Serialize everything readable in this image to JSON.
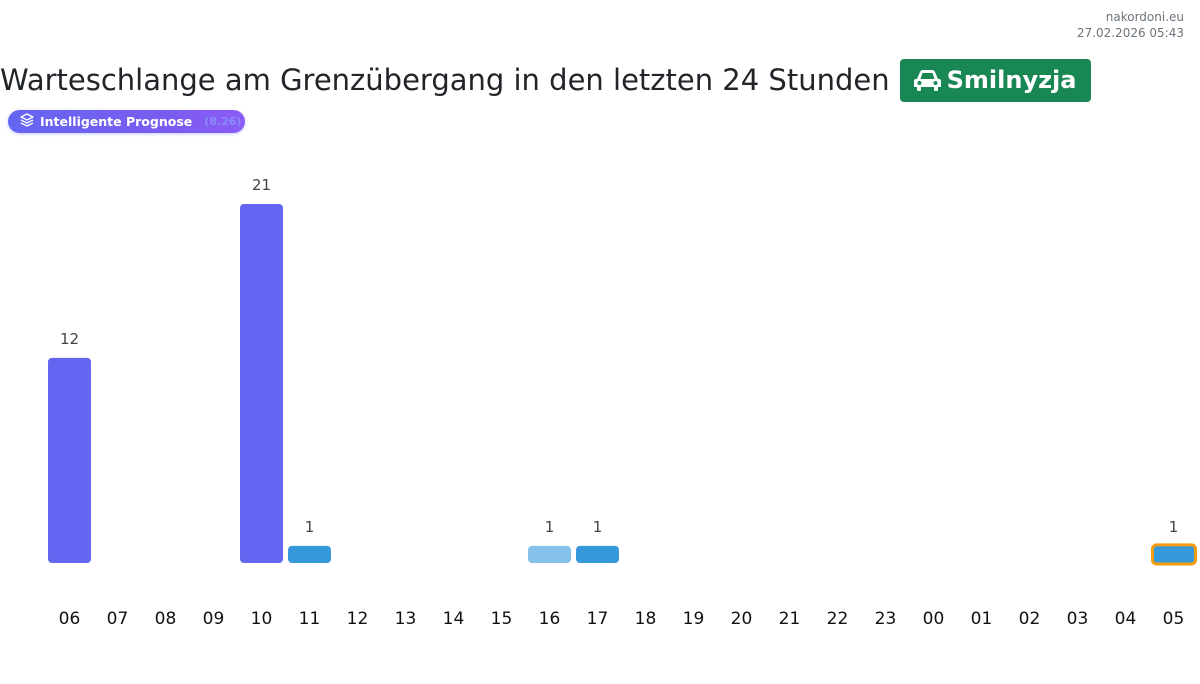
{
  "header": {
    "site": "nakordoni.eu",
    "datetime": "27.02.2026 05:43",
    "title": "Warteschlange am Grenzübergang in den letzten 24 Stunden",
    "crossing": "Smilnyzja"
  },
  "forecast_pill": {
    "label": "Intelligente Prognose",
    "tag": "(8.26)"
  },
  "colors": {
    "green": "#198754",
    "main_bar": "#6366f1",
    "blue_bar": "#3598db",
    "light_bar": "#85c1e9",
    "highlight_border": "#f39c12"
  },
  "chart_data": {
    "type": "bar",
    "title": "",
    "xlabel": "",
    "ylabel": "",
    "categories": [
      "06",
      "07",
      "08",
      "09",
      "10",
      "11",
      "12",
      "13",
      "14",
      "15",
      "16",
      "17",
      "18",
      "19",
      "20",
      "21",
      "22",
      "23",
      "00",
      "01",
      "02",
      "03",
      "04",
      "05"
    ],
    "values": [
      12,
      0,
      0,
      0,
      21,
      1,
      0,
      0,
      0,
      0,
      1,
      1,
      0,
      0,
      0,
      0,
      0,
      0,
      0,
      0,
      0,
      0,
      0,
      1
    ],
    "bar_colors": [
      "#6366f1",
      "",
      "",
      "",
      "#6366f1",
      "#3598db",
      "",
      "",
      "",
      "",
      "#85c1e9",
      "#3598db",
      "",
      "",
      "",
      "",
      "",
      "",
      "",
      "",
      "",
      "",
      "",
      "#3598db"
    ],
    "highlighted_category": "05",
    "ylim": [
      0,
      21
    ],
    "grid": false,
    "data_labels": true
  }
}
